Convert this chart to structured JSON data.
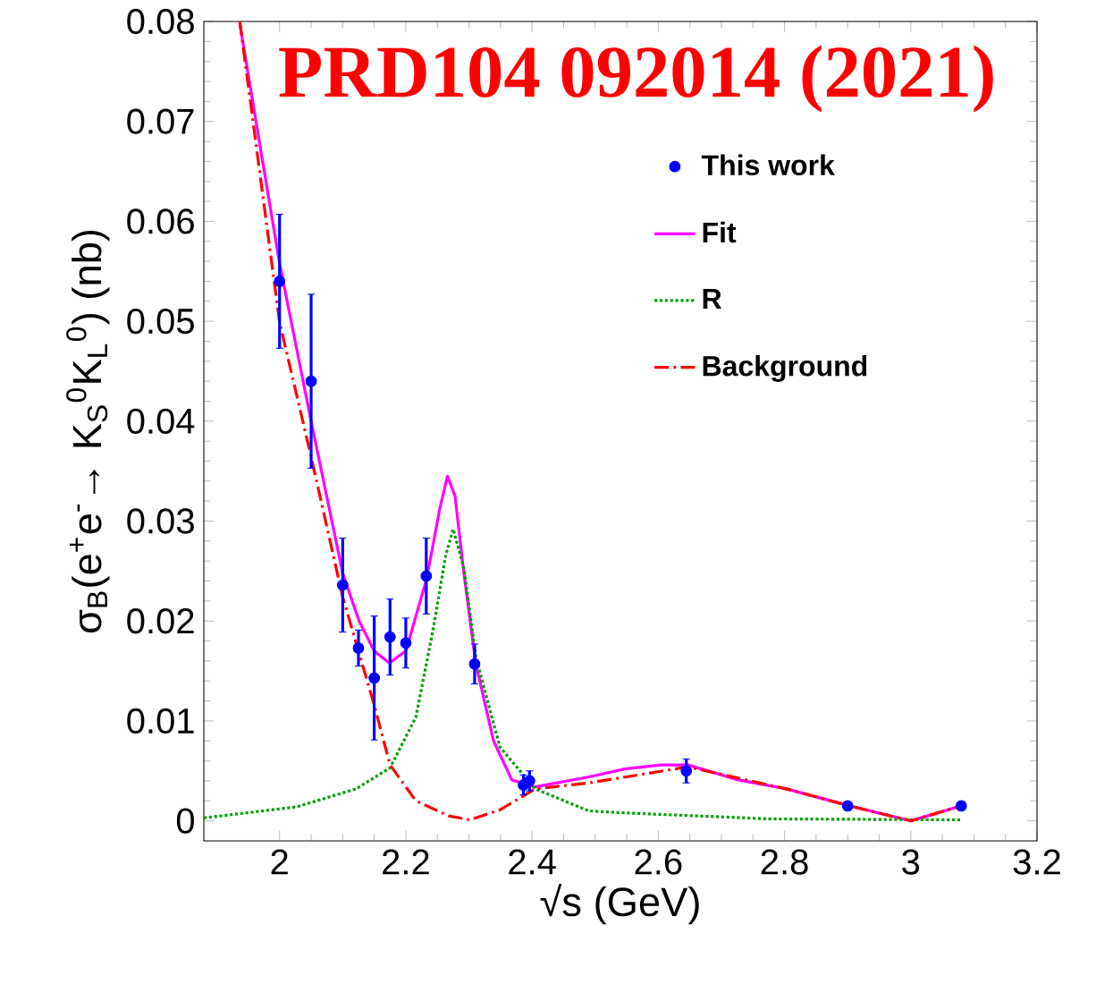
{
  "chart_data": {
    "type": "line",
    "annotations": [
      "PRD104 092014 (2021)"
    ],
    "xlabel": "√s (GeV)",
    "ylabel": "σ$_{B}$(e$^{+}$e$^{-}$→ K$_{S}$$^{0}$K$_{L}$$^{0}$) (nb)",
    "xlim": [
      1.88,
      3.2
    ],
    "ylim": [
      -0.002,
      0.08
    ],
    "xticks": [
      2,
      2.2,
      2.4,
      2.6,
      2.8,
      3,
      3.2
    ],
    "yticks": [
      0,
      0.01,
      0.02,
      0.03,
      0.04,
      0.05,
      0.06,
      0.07,
      0.08
    ],
    "legend": "top right",
    "series": [
      {
        "name": "This work",
        "type": "scatter",
        "color": "#0000ff",
        "x": [
          2.0,
          2.05,
          2.1,
          2.125,
          2.15,
          2.175,
          2.2,
          2.2324,
          2.309,
          2.3864,
          2.396,
          2.6444,
          2.9,
          3.08
        ],
        "values": [
          0.054,
          0.044,
          0.0236,
          0.0173,
          0.0143,
          0.0184,
          0.0178,
          0.0245,
          0.0157,
          0.0036,
          0.004,
          0.005,
          0.0015,
          0.0015
        ],
        "errors": [
          0.0067,
          0.0087,
          0.0047,
          0.0018,
          0.0062,
          0.0038,
          0.0025,
          0.0038,
          0.002,
          0.001,
          0.001,
          0.0012,
          null,
          null
        ]
      },
      {
        "name": "Fit",
        "color": "#ff00ff",
        "line_style": "solid",
        "x": [
          1.937,
          1.97,
          2.0,
          2.049,
          2.1,
          2.126,
          2.15,
          2.174,
          2.2,
          2.233,
          2.254,
          2.266,
          2.278,
          2.292,
          2.311,
          2.339,
          2.368,
          2.405,
          2.49,
          2.547,
          2.604,
          2.647,
          2.727,
          2.803,
          2.903,
          3.0,
          3.08
        ],
        "values": [
          0.0798,
          0.0672,
          0.0558,
          0.0403,
          0.0248,
          0.02,
          0.017,
          0.0158,
          0.017,
          0.0242,
          0.0313,
          0.0345,
          0.0325,
          0.0248,
          0.0157,
          0.008,
          0.0041,
          0.0034,
          0.0044,
          0.0052,
          0.0056,
          0.0056,
          0.0041,
          0.0032,
          0.0015,
          0.0,
          0.0015
        ]
      },
      {
        "name": "R",
        "color": "#00a000",
        "line_style": "dotted",
        "x": [
          1.88,
          2.027,
          2.121,
          2.175,
          2.216,
          2.244,
          2.263,
          2.275,
          2.292,
          2.311,
          2.349,
          2.405,
          2.49,
          2.547,
          2.775,
          3.08
        ],
        "values": [
          0.0003,
          0.0014,
          0.0032,
          0.0053,
          0.0104,
          0.0194,
          0.0265,
          0.0292,
          0.0253,
          0.0164,
          0.0074,
          0.0032,
          0.001,
          0.0008,
          0.0002,
          0.0001
        ]
      },
      {
        "name": "Background",
        "color": "#ff0000",
        "line_style": "dashed",
        "x": [
          1.937,
          2.0,
          2.049,
          2.1,
          2.15,
          2.175,
          2.216,
          2.268,
          2.301,
          2.349,
          2.405,
          2.49,
          2.647,
          2.803,
          2.903,
          3.0,
          3.08
        ],
        "values": [
          0.08,
          0.0499,
          0.0367,
          0.0224,
          0.0116,
          0.0056,
          0.002,
          0.0005,
          0.0001,
          0.0011,
          0.0032,
          0.0038,
          0.0054,
          0.0032,
          0.0015,
          0.0,
          0.0015
        ]
      }
    ]
  }
}
